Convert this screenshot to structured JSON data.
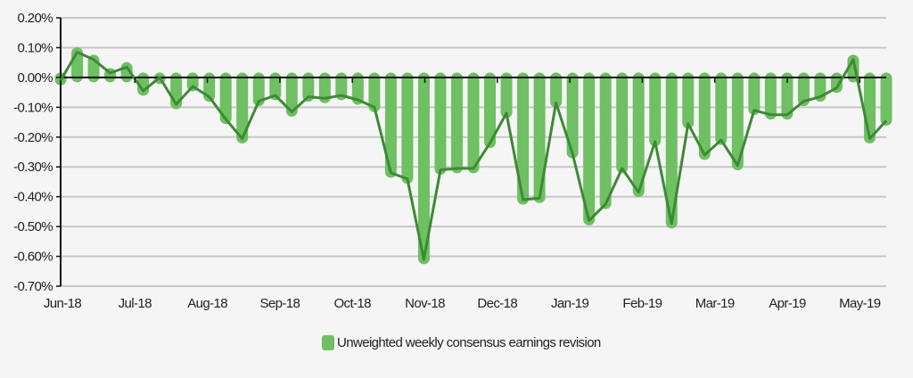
{
  "chart_data": {
    "type": "bar",
    "title": "",
    "xlabel": "",
    "ylabel": "",
    "ylim": [
      -0.7,
      0.2
    ],
    "y_ticks": [
      0.2,
      0.1,
      0.0,
      -0.1,
      -0.2,
      -0.3,
      -0.4,
      -0.5,
      -0.6,
      -0.7
    ],
    "y_tick_labels": [
      "0.20%",
      "0.10%",
      "0.00%",
      "-0.10%",
      "-0.20%",
      "-0.30%",
      "-0.40%",
      "-0.50%",
      "-0.60%",
      "-0.70%"
    ],
    "x_tick_labels": [
      "Jun-18",
      "Jul-18",
      "Aug-18",
      "Sep-18",
      "Oct-18",
      "Nov-18",
      "Dec-18",
      "Jan-19",
      "Feb-19",
      "Mar-19",
      "Apr-19",
      "May-19"
    ],
    "grid": true,
    "legend_position": "bottom-center",
    "series": [
      {
        "name": "Unweighted weekly consensus earnings revision",
        "type": "bar",
        "color": "#6fbf63",
        "line_overlay_color": "#3d8a35",
        "unit": "%",
        "values": [
          -0.01,
          0.085,
          0.06,
          0.015,
          0.035,
          -0.045,
          0.0,
          -0.09,
          -0.03,
          -0.065,
          -0.14,
          -0.205,
          -0.08,
          -0.06,
          -0.115,
          -0.065,
          -0.07,
          -0.06,
          -0.075,
          -0.1,
          -0.32,
          -0.34,
          -0.61,
          -0.31,
          -0.305,
          -0.305,
          -0.22,
          -0.12,
          -0.41,
          -0.405,
          -0.085,
          -0.255,
          -0.48,
          -0.425,
          -0.305,
          -0.385,
          -0.215,
          -0.49,
          -0.155,
          -0.26,
          -0.21,
          -0.295,
          -0.11,
          -0.125,
          -0.125,
          -0.08,
          -0.065,
          -0.035,
          0.06,
          -0.205,
          -0.145
        ]
      }
    ]
  },
  "legend": {
    "label": "Unweighted weekly consensus earnings revision",
    "color": "#6fbf63"
  }
}
